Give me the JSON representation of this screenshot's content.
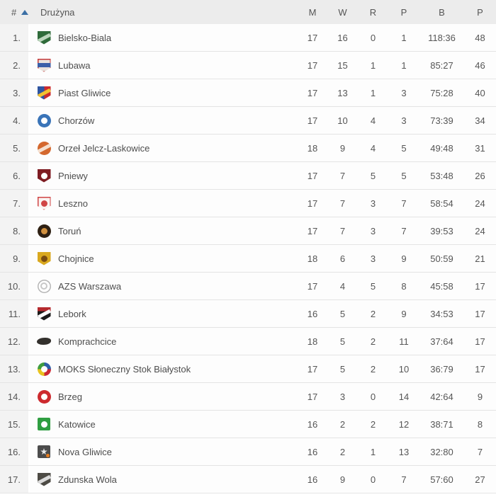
{
  "table": {
    "columns": {
      "pos": "#",
      "team": "Drużyna",
      "m": "M",
      "w": "W",
      "r": "R",
      "p": "P",
      "b": "B",
      "pts": "P"
    },
    "sort": {
      "column": "pos",
      "direction": "ascending"
    },
    "rows": [
      {
        "pos": "1.",
        "team": "Bielsko-Biala",
        "m": "17",
        "w": "16",
        "r": "0",
        "p": "1",
        "b": "118:36",
        "pts": "48",
        "logo": {
          "shape": "shield",
          "bg": "#2f6b3a",
          "inner": "slash",
          "fg": "#bcd6bd"
        }
      },
      {
        "pos": "2.",
        "team": "Lubawa",
        "m": "17",
        "w": "15",
        "r": "1",
        "p": "1",
        "b": "85:27",
        "pts": "46",
        "logo": {
          "shape": "shield",
          "bg": "#e9e2dd",
          "border": "#c43b3b",
          "inner": "band",
          "fg": "#3a5fa8"
        }
      },
      {
        "pos": "3.",
        "team": "Piast Gliwice",
        "m": "17",
        "w": "13",
        "r": "1",
        "p": "3",
        "b": "75:28",
        "pts": "40",
        "logo": {
          "shape": "shield",
          "bg": "linear-gradient(90deg,#2e55a0 50%,#cc2a2e 50%)",
          "inner": "slash",
          "fg": "#f2c230"
        }
      },
      {
        "pos": "4.",
        "team": "Chorzów",
        "m": "17",
        "w": "10",
        "r": "4",
        "p": "3",
        "b": "73:39",
        "pts": "34",
        "logo": {
          "shape": "circle",
          "bg": "#3a74b8",
          "inner": "dot",
          "fg": "#ffffff"
        }
      },
      {
        "pos": "5.",
        "team": "Orzeł Jelcz-Laskowice",
        "m": "18",
        "w": "9",
        "r": "4",
        "p": "5",
        "b": "49:48",
        "pts": "31",
        "logo": {
          "shape": "circle",
          "bg": "#d4682e",
          "inner": "slash",
          "fg": "#f5e0cf"
        }
      },
      {
        "pos": "6.",
        "team": "Pniewy",
        "m": "17",
        "w": "7",
        "r": "5",
        "p": "5",
        "b": "53:48",
        "pts": "26",
        "logo": {
          "shape": "shield",
          "bg": "#7e1c22",
          "inner": "dot",
          "fg": "#ffffff"
        }
      },
      {
        "pos": "7.",
        "team": "Leszno",
        "m": "17",
        "w": "7",
        "r": "3",
        "p": "7",
        "b": "58:54",
        "pts": "24",
        "logo": {
          "shape": "shield",
          "bg": "#faf4f2",
          "border": "#d04545",
          "inner": "dot",
          "fg": "#d04545"
        }
      },
      {
        "pos": "8.",
        "team": "Toruń",
        "m": "17",
        "w": "7",
        "r": "3",
        "p": "7",
        "b": "39:53",
        "pts": "24",
        "logo": {
          "shape": "circle",
          "bg": "#2e2013",
          "inner": "dot",
          "fg": "#d2913f"
        }
      },
      {
        "pos": "9.",
        "team": "Chojnice",
        "m": "18",
        "w": "6",
        "r": "3",
        "p": "9",
        "b": "50:59",
        "pts": "21",
        "logo": {
          "shape": "shield",
          "bg": "#d9a81f",
          "inner": "dot",
          "fg": "#7a4c10"
        }
      },
      {
        "pos": "10.",
        "team": "AZS Warszawa",
        "m": "17",
        "w": "4",
        "r": "5",
        "p": "8",
        "b": "45:58",
        "pts": "17",
        "logo": {
          "shape": "circle",
          "bg": "#ffffff",
          "border": "#b5b5b5",
          "inner": "ring",
          "fg": "#c8c8c8"
        }
      },
      {
        "pos": "11.",
        "team": "Lebork",
        "m": "16",
        "w": "5",
        "r": "2",
        "p": "9",
        "b": "34:53",
        "pts": "17",
        "logo": {
          "shape": "shield",
          "bg": "linear-gradient(180deg,#b52a2e 30%,#1c1c1c 30%)",
          "inner": "slash",
          "fg": "#ffffff"
        }
      },
      {
        "pos": "12.",
        "team": "Komprachcice",
        "m": "18",
        "w": "5",
        "r": "2",
        "p": "11",
        "b": "37:64",
        "pts": "17",
        "logo": {
          "shape": "beast",
          "bg": "#33302c",
          "inner": "none"
        }
      },
      {
        "pos": "13.",
        "team": "MOKS Słoneczny Stok Białystok",
        "m": "17",
        "w": "5",
        "r": "2",
        "p": "10",
        "b": "36:79",
        "pts": "17",
        "logo": {
          "shape": "circle",
          "bg": "conic-gradient(#2e5fa8 0 25%,#cc2733 25% 50%,#e8c31f 50% 75%,#3f9e3f 75% 100%)",
          "inner": "dot",
          "fg": "#ffffff"
        }
      },
      {
        "pos": "14.",
        "team": "Brzeg",
        "m": "17",
        "w": "3",
        "r": "0",
        "p": "14",
        "b": "42:64",
        "pts": "9",
        "logo": {
          "shape": "circle",
          "bg": "#cd2a2e",
          "inner": "dot",
          "fg": "#ffffff"
        }
      },
      {
        "pos": "15.",
        "team": "Katowice",
        "m": "16",
        "w": "2",
        "r": "2",
        "p": "12",
        "b": "38:71",
        "pts": "8",
        "logo": {
          "shape": "square",
          "bg": "#2f9e41",
          "inner": "dot",
          "fg": "#ffffff"
        }
      },
      {
        "pos": "16.",
        "team": "Nova Gliwice",
        "m": "16",
        "w": "2",
        "r": "1",
        "p": "13",
        "b": "32:80",
        "pts": "7",
        "logo": {
          "shape": "square",
          "bg": "#4c4c4c",
          "inner": "burst",
          "fg": "#e9e9e9",
          "fg2": "#e87d1e"
        }
      },
      {
        "pos": "17.",
        "team": "Zdunska Wola",
        "m": "16",
        "w": "9",
        "r": "0",
        "p": "7",
        "b": "57:60",
        "pts": "27",
        "logo": {
          "shape": "shield",
          "bg": "#4d4b45",
          "inner": "slash",
          "fg": "#dcdcdc"
        }
      }
    ]
  },
  "colors": {
    "header_bg": "#ececec",
    "row_bg": "#fdfdfd",
    "position_column_bg": "#f3f3f3",
    "separator": "#e4e4e4",
    "text": "#555555",
    "sort_arrow": "#3b6fa5"
  }
}
